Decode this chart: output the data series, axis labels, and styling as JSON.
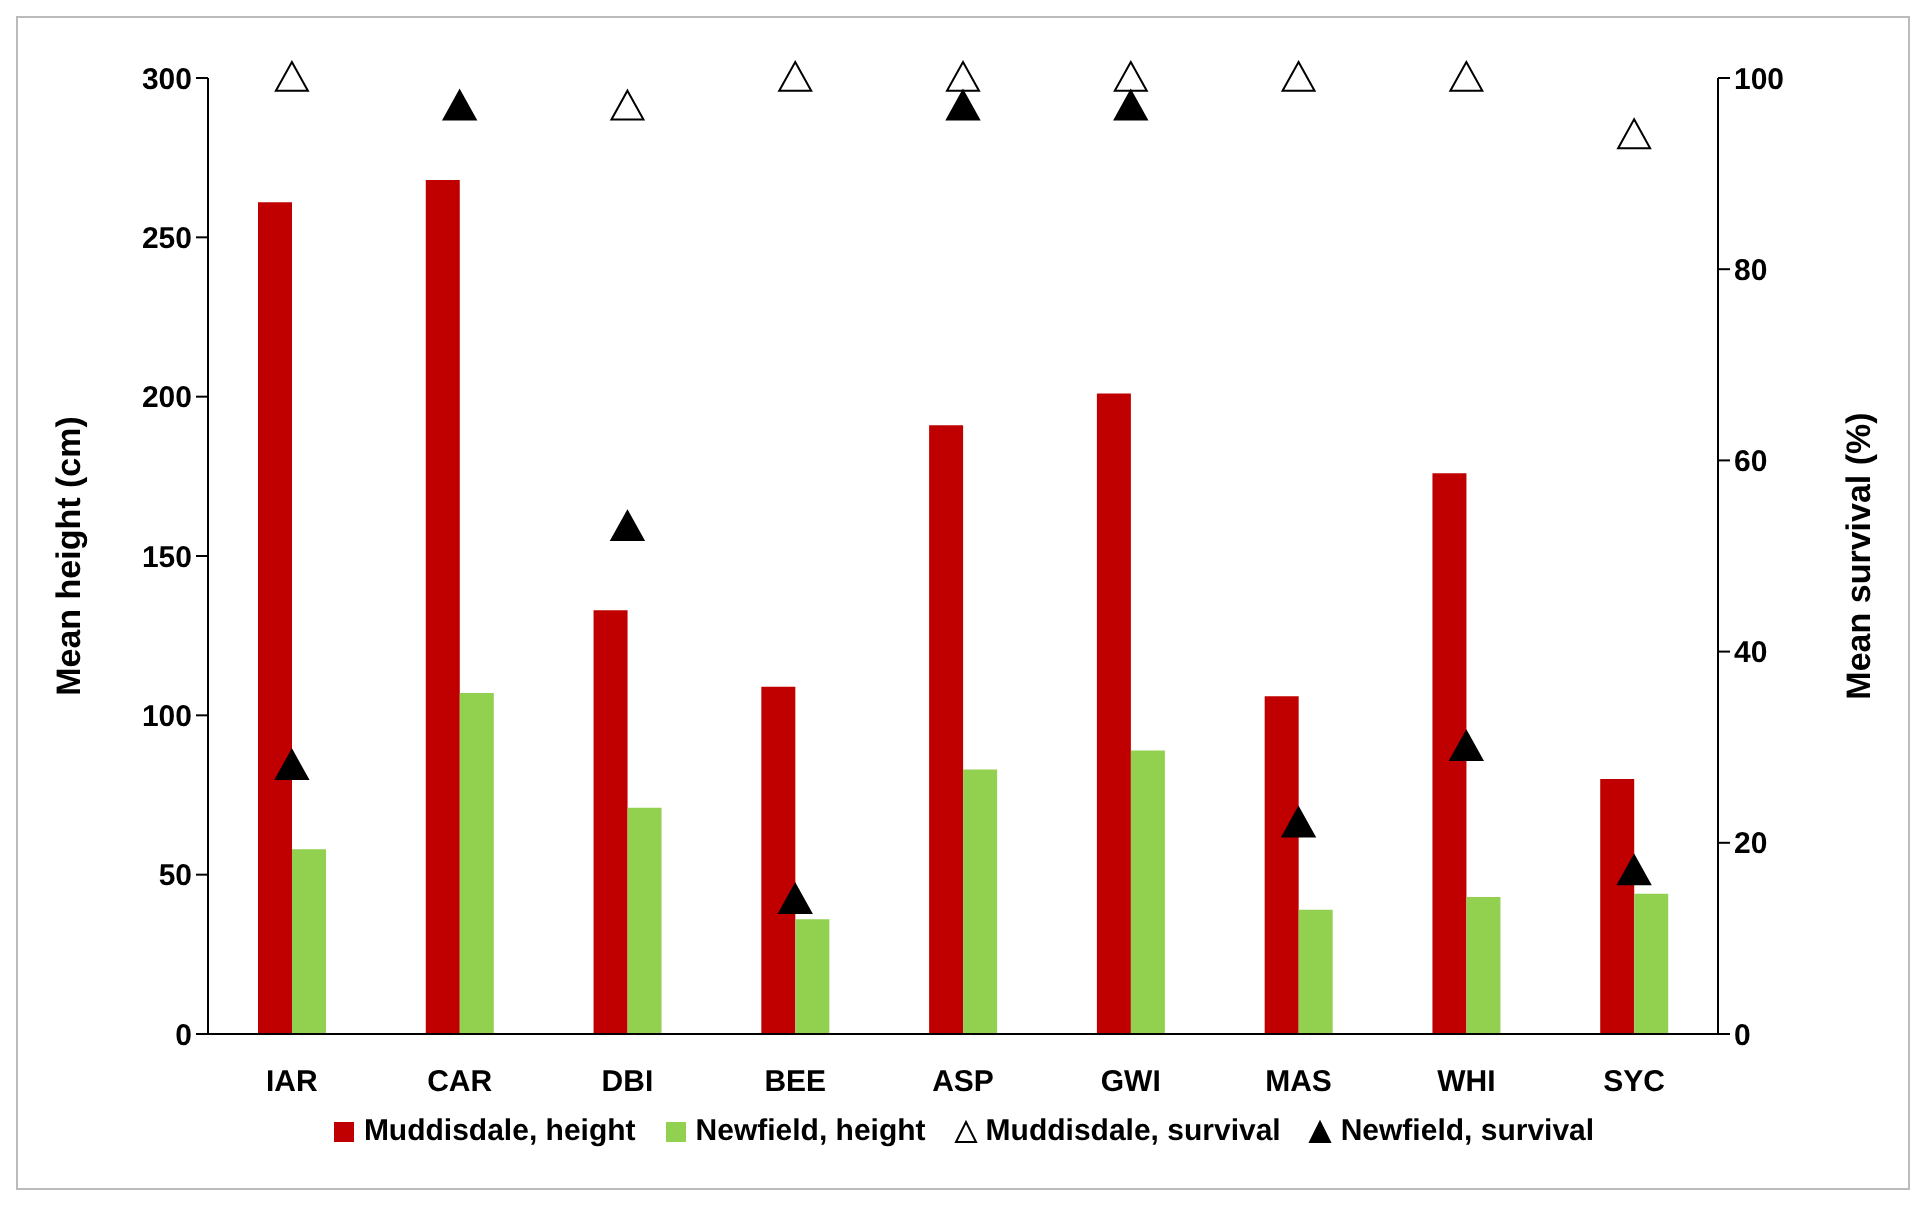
{
  "chart_data": {
    "type": "bar",
    "ylabel": "Mean height (cm)",
    "y2label": "Mean survival (%)",
    "categories": [
      "IAR",
      "CAR",
      "DBI",
      "BEE",
      "ASP",
      "GWI",
      "MAS",
      "WHI",
      "SYC"
    ],
    "series": [
      {
        "name": "Muddisdale, height",
        "color": "#c00000",
        "values": [
          261,
          268,
          133,
          109,
          191,
          201,
          106,
          176,
          80
        ]
      },
      {
        "name": "Newfield, height",
        "color": "#92d050",
        "values": [
          58,
          107,
          71,
          36,
          83,
          89,
          39,
          43,
          44
        ]
      },
      {
        "name": "Muddisdale, survival",
        "type": "scatter",
        "axis": "y2",
        "marker": "triangle",
        "color": "#ffffff",
        "values": [
          100,
          null,
          97,
          100,
          100,
          100,
          100,
          100,
          94
        ]
      },
      {
        "name": "Newfield, survival",
        "type": "scatter",
        "axis": "y2",
        "marker": "triangle",
        "color": "#000000",
        "values": [
          28,
          97,
          53,
          14,
          97,
          97,
          22,
          30,
          17
        ]
      }
    ],
    "ylim": [
      0,
      300
    ],
    "yticks": [
      0,
      50,
      100,
      150,
      200,
      250,
      300
    ],
    "y2lim": [
      0,
      100
    ],
    "y2ticks": [
      0,
      20,
      40,
      60,
      80,
      100
    ],
    "grid": false,
    "legend": "bottom"
  }
}
